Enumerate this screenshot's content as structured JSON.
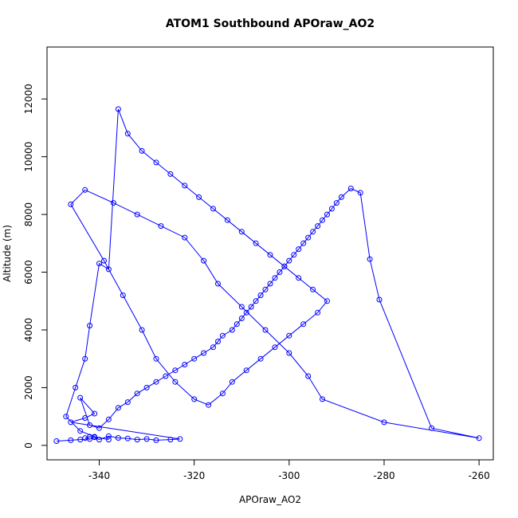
{
  "chart_data": {
    "type": "scatter",
    "title": "ATOM1 Southbound APOraw_AO2",
    "xlabel": "APOraw_AO2",
    "ylabel": "Altitude (m)",
    "xlim": [
      -351,
      -257
    ],
    "ylim": [
      -500,
      13800
    ],
    "xticks": [
      -340,
      -320,
      -300,
      -280,
      -260
    ],
    "yticks": [
      0,
      2000,
      4000,
      6000,
      8000,
      10000,
      12000
    ],
    "grid": false,
    "legend": "none",
    "series_color": "#0000ff",
    "series": [
      {
        "x": [
          -349,
          -346,
          -344,
          -342,
          -343,
          -342,
          -341,
          -340,
          -338,
          -336,
          -334,
          -332,
          -330,
          -328,
          -325,
          -323,
          -346,
          -343,
          -341,
          -344,
          -342,
          -340,
          -338,
          -336,
          -334,
          -332,
          -330,
          -328,
          -326,
          -324,
          -322,
          -320,
          -318,
          -316,
          -315,
          -314,
          -312,
          -311,
          -310,
          -309,
          -308,
          -307,
          -306,
          -305,
          -304,
          -303,
          -302,
          -301,
          -300,
          -299,
          -298,
          -297,
          -296,
          -295,
          -294,
          -293,
          -292,
          -291,
          -290,
          -289,
          -287,
          -285,
          -283,
          -281,
          -270,
          -260,
          -280,
          -293,
          -296,
          -300,
          -305,
          -310,
          -315,
          -318,
          -322,
          -327,
          -332,
          -337,
          -343,
          -346,
          -339,
          -335,
          -331,
          -328,
          -324,
          -320,
          -317,
          -314,
          -312,
          -309,
          -306,
          -303,
          -300,
          -297,
          -294,
          -292,
          -295,
          -298,
          -301,
          -304,
          -307,
          -310,
          -313,
          -316,
          -319,
          -322,
          -325,
          -328,
          -331,
          -334,
          -336,
          -338,
          -340,
          -342,
          -343,
          -345,
          -347,
          -344,
          -341,
          -338
        ],
        "y": [
          150,
          180,
          200,
          220,
          250,
          300,
          280,
          200,
          320,
          260,
          240,
          200,
          220,
          180,
          200,
          220,
          800,
          950,
          1100,
          1650,
          700,
          600,
          900,
          1300,
          1500,
          1800,
          2000,
          2200,
          2400,
          2600,
          2800,
          3000,
          3200,
          3400,
          3600,
          3800,
          4000,
          4200,
          4400,
          4600,
          4800,
          5000,
          5200,
          5400,
          5600,
          5800,
          6000,
          6200,
          6400,
          6600,
          6800,
          7000,
          7200,
          7400,
          7600,
          7800,
          8000,
          8200,
          8400,
          8600,
          8900,
          8750,
          6450,
          5050,
          600,
          250,
          800,
          1600,
          2400,
          3200,
          4000,
          4800,
          5600,
          6400,
          7200,
          7600,
          8000,
          8400,
          8850,
          8350,
          6400,
          5200,
          4000,
          3000,
          2200,
          1600,
          1400,
          1800,
          2200,
          2600,
          3000,
          3400,
          3800,
          4200,
          4600,
          5000,
          5400,
          5800,
          6200,
          6600,
          7000,
          7400,
          7800,
          8200,
          8600,
          9000,
          9400,
          9800,
          10200,
          10800,
          11650,
          6100,
          6300,
          4150,
          3000,
          2000,
          1000,
          500,
          300,
          200
        ]
      }
    ]
  }
}
